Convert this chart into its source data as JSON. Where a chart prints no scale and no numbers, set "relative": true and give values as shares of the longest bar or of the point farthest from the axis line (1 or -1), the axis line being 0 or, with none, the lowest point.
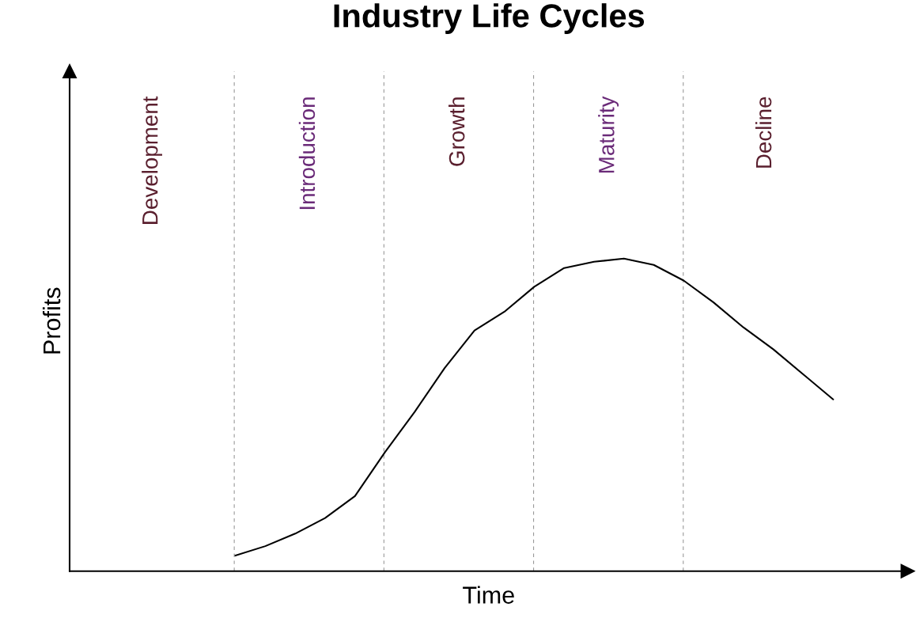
{
  "chart_data": {
    "type": "line",
    "title": "Industry Life Cycles",
    "xlabel": "Time",
    "ylabel": "Profits",
    "relative": true,
    "categories": [
      null,
      null,
      null,
      null,
      null,
      null,
      null,
      null,
      null,
      null,
      null,
      null,
      null,
      null,
      null,
      null,
      null,
      null,
      null,
      null,
      null,
      null,
      null,
      null,
      null,
      null,
      null,
      null
    ],
    "series": [
      {
        "color": "#000000",
        "values": [
          null,
          null,
          null,
          null,
          null,
          0.05,
          0.08,
          0.12,
          0.17,
          0.24,
          0.38,
          0.51,
          0.65,
          0.77,
          0.83,
          0.91,
          0.97,
          0.99,
          1.0,
          0.98,
          0.93,
          0.86,
          0.78,
          0.71,
          0.63,
          0.55,
          null,
          null
        ]
      }
    ],
    "grid": "x",
    "annotations": [
      "Development",
      "Introduction",
      "Growth",
      "Maturity",
      "Decline"
    ]
  }
}
